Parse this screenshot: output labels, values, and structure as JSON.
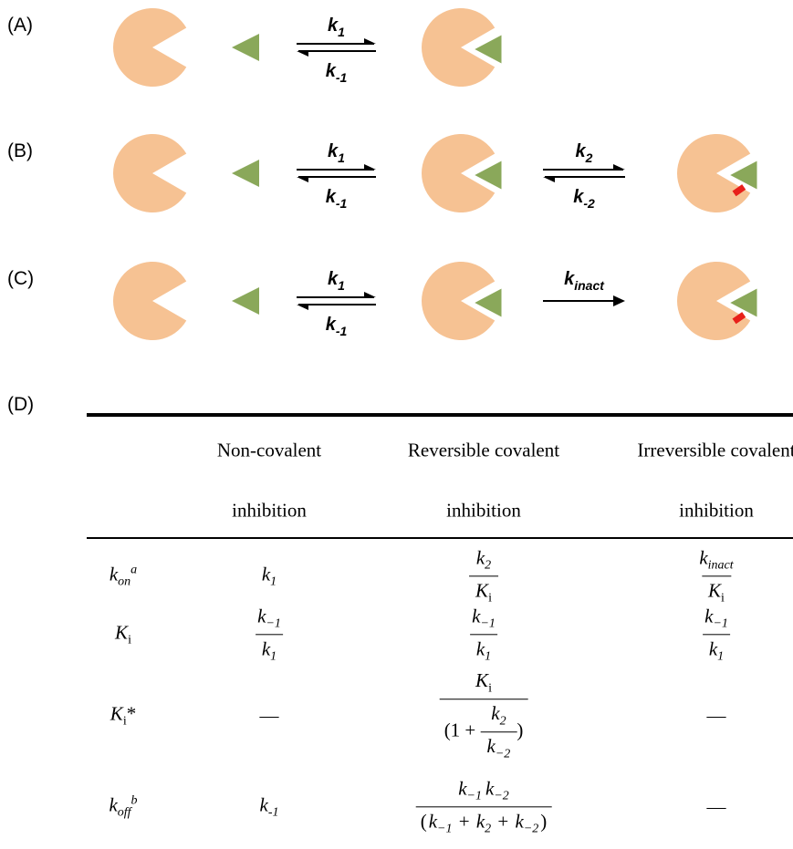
{
  "panels": [
    {
      "label": "(A)",
      "steps": [
        {
          "forward": {
            "base": "k",
            "sub": "1"
          },
          "reverse": {
            "base": "k",
            "sub": "-1"
          }
        }
      ]
    },
    {
      "label": "(B)",
      "steps": [
        {
          "forward": {
            "base": "k",
            "sub": "1"
          },
          "reverse": {
            "base": "k",
            "sub": "-1"
          }
        },
        {
          "forward": {
            "base": "k",
            "sub": "2"
          },
          "reverse": {
            "base": "k",
            "sub": "-2"
          }
        }
      ]
    },
    {
      "label": "(C)",
      "steps": [
        {
          "forward": {
            "base": "k",
            "sub": "1"
          },
          "reverse": {
            "base": "k",
            "sub": "-1"
          }
        },
        {
          "forward": {
            "base": "k",
            "sub": "inact"
          }
        }
      ]
    }
  ],
  "table": {
    "label": "(D)",
    "header": [
      [
        "Non-covalent",
        "inhibition"
      ],
      [
        "Reversible covalent",
        "inhibition"
      ],
      [
        "Irreversible covalent",
        "inhibition"
      ]
    ],
    "rows": [
      {
        "label": [
          {
            "base": "k",
            "sub": "on",
            "sup": "a"
          }
        ],
        "cells": [
          [
            {
              "base": "k",
              "sub": "1"
            }
          ],
          [
            {
              "num": [
                {
                  "base": "k",
                  "sub": "2"
                }
              ],
              "den": [
                {
                  "base": "K",
                  "sub": "i"
                }
              ]
            }
          ],
          [
            {
              "num": [
                {
                  "base": "k",
                  "sub": "inact"
                }
              ],
              "den": [
                {
                  "base": "K",
                  "sub": "i"
                }
              ]
            }
          ]
        ]
      },
      {
        "label": [
          {
            "base": "K",
            "sub": "i"
          }
        ],
        "cells": [
          [
            {
              "num": [
                {
                  "base": "k",
                  "sub": "−1"
                }
              ],
              "den": [
                {
                  "base": "k",
                  "sub": "1"
                }
              ]
            }
          ],
          [
            {
              "num": [
                {
                  "base": "k",
                  "sub": "−1"
                }
              ],
              "den": [
                {
                  "base": "k",
                  "sub": "1"
                }
              ]
            }
          ],
          [
            {
              "num": [
                {
                  "base": "k",
                  "sub": "−1"
                }
              ],
              "den": [
                {
                  "base": "k",
                  "sub": "1"
                }
              ]
            }
          ]
        ]
      },
      {
        "label": [
          {
            "base": "K",
            "sub": "i",
            "suffix": "*"
          }
        ],
        "cells": [
          [
            "—"
          ],
          [
            {
              "num": [
                {
                  "base": "K",
                  "sub": "i"
                }
              ],
              "den": [
                "(1 + ",
                {
                  "num": [
                    {
                      "base": "k",
                      "sub": "2"
                    }
                  ],
                  "den": [
                    {
                      "base": "k",
                      "sub": "−2"
                    }
                  ]
                },
                ")"
              ]
            }
          ],
          [
            "—"
          ]
        ]
      },
      {
        "label": [
          {
            "base": "k",
            "sub": "off",
            "sup": "b"
          }
        ],
        "cells": [
          [
            {
              "base": "k",
              "sub": "-1"
            }
          ],
          [
            {
              "num": [
                {
                  "base": "k",
                  "sub": "−1"
                },
                {
                  "base": "k",
                  "sub": "−2"
                }
              ],
              "den": [
                "(",
                {
                  "base": "k",
                  "sub": "−1"
                },
                " + ",
                {
                  "base": "k",
                  "sub": "2"
                },
                " + ",
                {
                  "base": "k",
                  "sub": "−2"
                },
                ")"
              ]
            }
          ],
          [
            "—"
          ]
        ]
      }
    ]
  }
}
